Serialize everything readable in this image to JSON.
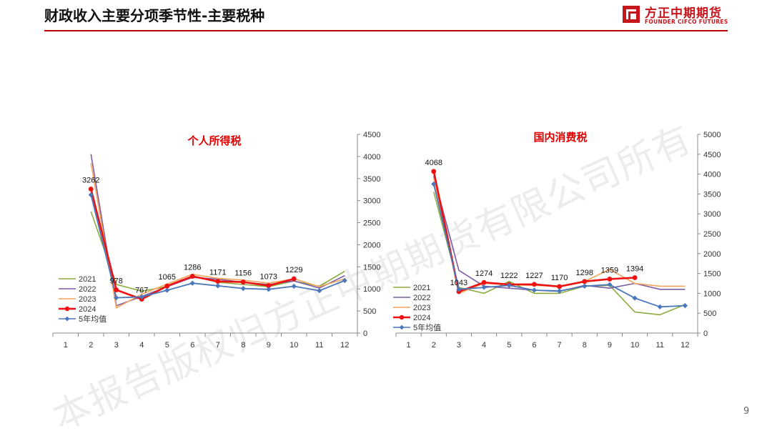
{
  "page": {
    "title": "财政收入主要分项季节性-主要税种",
    "page_number": "9",
    "watermark": "本报告版权归方正中期期货有限公司所有"
  },
  "logo": {
    "cn": "方正中期期货",
    "en": "FOUNDER CIFCO FUTURES",
    "brand_color": "#c8161d"
  },
  "chart_data": [
    {
      "type": "line",
      "title": "个人所得税",
      "categories": [
        "1",
        "2",
        "3",
        "4",
        "5",
        "6",
        "7",
        "8",
        "9",
        "10",
        "11",
        "12"
      ],
      "ylim": [
        0,
        4500
      ],
      "yticks": [
        0,
        500,
        1000,
        1500,
        2000,
        2500,
        3000,
        3500,
        4000,
        4500
      ],
      "y_axis_side": "right",
      "legend_position": "bottom-left",
      "grid": false,
      "series": [
        {
          "name": "2021",
          "color": "#8bac3d",
          "marker": "none",
          "values": [
            null,
            2750,
            1100,
            950,
            1050,
            1290,
            1150,
            1100,
            1050,
            1180,
            1060,
            1400
          ]
        },
        {
          "name": "2022",
          "color": "#7b5ea7",
          "marker": "none",
          "values": [
            null,
            4050,
            620,
            830,
            1050,
            1260,
            1220,
            1150,
            1100,
            1180,
            1020,
            1300
          ]
        },
        {
          "name": "2023",
          "color": "#f5a45a",
          "marker": "none",
          "values": [
            null,
            3850,
            570,
            880,
            1110,
            1330,
            1240,
            1200,
            1130,
            1230,
            1050,
            1230
          ]
        },
        {
          "name": "2024",
          "color": "#ee1111",
          "marker": "circle",
          "values": [
            null,
            3262,
            978,
            767,
            1065,
            1286,
            1171,
            1156,
            1073,
            1229,
            null,
            null
          ]
        },
        {
          "name": "5年均值",
          "color": "#4a77bb",
          "marker": "diamond",
          "values": [
            null,
            3130,
            800,
            820,
            970,
            1130,
            1070,
            1010,
            990,
            1060,
            960,
            1190
          ]
        }
      ],
      "data_labels": [
        {
          "index": 1,
          "text": "3262"
        },
        {
          "index": 2,
          "text": "978"
        },
        {
          "index": 3,
          "text": "767"
        },
        {
          "index": 4,
          "text": "1065"
        },
        {
          "index": 5,
          "text": "1286"
        },
        {
          "index": 6,
          "text": "1171"
        },
        {
          "index": 7,
          "text": "1156"
        },
        {
          "index": 8,
          "text": "1073"
        },
        {
          "index": 9,
          "text": "1229"
        }
      ]
    },
    {
      "type": "line",
      "title": "国内消费税",
      "categories": [
        "1",
        "2",
        "3",
        "4",
        "5",
        "6",
        "7",
        "8",
        "9",
        "10",
        "11",
        "12"
      ],
      "ylim": [
        0,
        5000
      ],
      "yticks": [
        0,
        500,
        1000,
        1500,
        2000,
        2500,
        3000,
        3500,
        4000,
        4500,
        5000
      ],
      "y_axis_side": "right",
      "legend_position": "bottom-left",
      "grid": false,
      "series": [
        {
          "name": "2021",
          "color": "#8bac3d",
          "marker": "none",
          "values": [
            null,
            3550,
            1150,
            1000,
            1300,
            1000,
            1000,
            1180,
            1200,
            530,
            460,
            720
          ]
        },
        {
          "name": "2022",
          "color": "#7b5ea7",
          "marker": "none",
          "values": [
            null,
            3950,
            1580,
            1180,
            1130,
            1080,
            1050,
            1200,
            1130,
            1250,
            1100,
            1100
          ]
        },
        {
          "name": "2023",
          "color": "#f5a45a",
          "marker": "none",
          "values": [
            null,
            3900,
            1000,
            1250,
            1220,
            1200,
            1180,
            1300,
            1600,
            1250,
            1180,
            1180
          ]
        },
        {
          "name": "2024",
          "color": "#ee1111",
          "marker": "circle",
          "values": [
            null,
            4068,
            1043,
            1274,
            1222,
            1227,
            1170,
            1298,
            1359,
            1394,
            null,
            null
          ]
        },
        {
          "name": "5年均值",
          "color": "#4a77bb",
          "marker": "diamond",
          "values": [
            null,
            3750,
            1100,
            1150,
            1200,
            1080,
            1060,
            1180,
            1220,
            880,
            660,
            690
          ]
        }
      ],
      "data_labels": [
        {
          "index": 1,
          "text": "4068"
        },
        {
          "index": 2,
          "text": "1043"
        },
        {
          "index": 3,
          "text": "1274"
        },
        {
          "index": 4,
          "text": "1222"
        },
        {
          "index": 5,
          "text": "1227"
        },
        {
          "index": 6,
          "text": "1170"
        },
        {
          "index": 7,
          "text": "1298"
        },
        {
          "index": 8,
          "text": "1359"
        },
        {
          "index": 9,
          "text": "1394"
        }
      ]
    }
  ]
}
